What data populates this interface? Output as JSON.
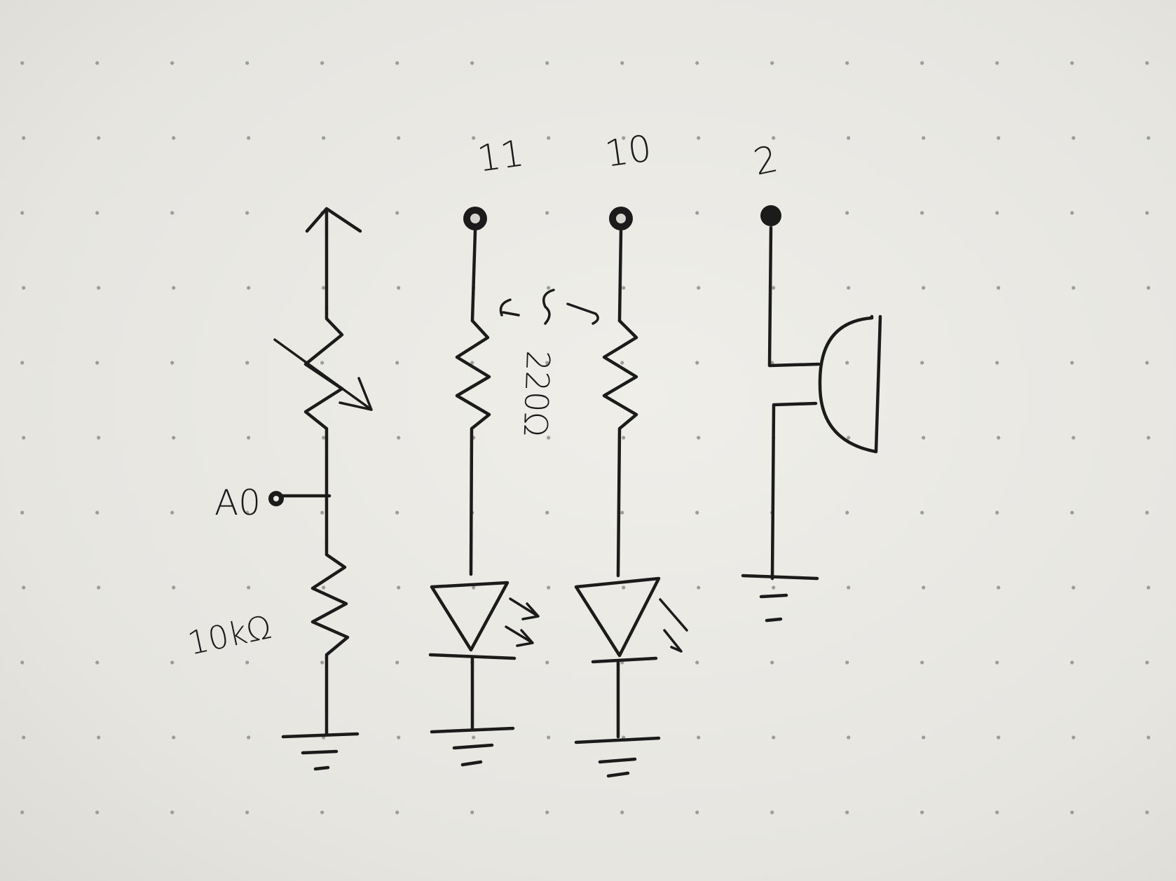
{
  "labels": {
    "pin_11": "11",
    "pin_10": "10",
    "pin_2": "2",
    "analog_pin": "A0",
    "resistor_10k": "10kΩ",
    "resistor_220": "220Ω"
  }
}
